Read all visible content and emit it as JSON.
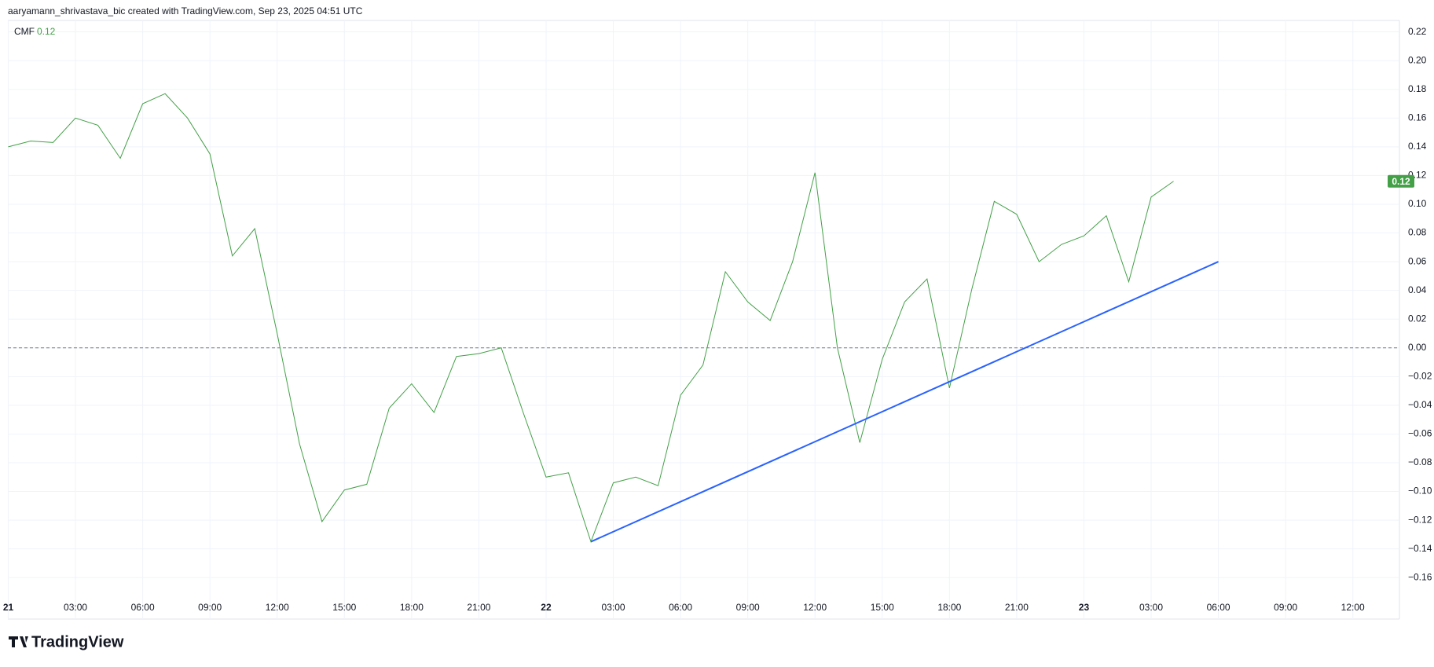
{
  "header": "aaryamann_shrivastava_bic created with TradingView.com, Sep 23, 2025 04:51 UTC",
  "logo": "TradingView",
  "chart_data": {
    "type": "line",
    "legend_name": "CMF",
    "legend_value": "0.12",
    "price_tag": {
      "value": 0.116,
      "label": "0.12",
      "color": "#43a047"
    },
    "categories": [
      "21",
      null,
      null,
      "03:00",
      null,
      null,
      "06:00",
      null,
      null,
      "09:00",
      null,
      null,
      "12:00",
      null,
      null,
      "15:00",
      null,
      null,
      "18:00",
      null,
      null,
      "21:00",
      null,
      null,
      "22",
      null,
      null,
      "03:00",
      null,
      null,
      "06:00",
      null,
      null,
      "09:00",
      null,
      null,
      "12:00",
      null,
      null,
      "15:00",
      null,
      null,
      "18:00",
      null,
      null,
      "21:00",
      null,
      null,
      "23",
      null,
      null,
      "03:00",
      null,
      null,
      "06:00",
      null,
      null,
      "09:00",
      null,
      null,
      "12:00",
      null,
      null
    ],
    "series": [
      {
        "name": "CMF",
        "color": "#43a047",
        "values": [
          0.14,
          0.144,
          0.143,
          0.16,
          0.155,
          0.132,
          0.17,
          0.177,
          0.16,
          0.135,
          0.064,
          0.083,
          0.01,
          -0.067,
          -0.121,
          -0.099,
          -0.095,
          -0.042,
          -0.025,
          -0.045,
          -0.006,
          -0.004,
          0.0,
          -0.046,
          -0.09,
          -0.087,
          -0.135,
          -0.094,
          -0.09,
          -0.096,
          -0.033,
          -0.012,
          0.053,
          0.032,
          0.019,
          0.06,
          0.122,
          0.0,
          -0.066,
          -0.008,
          0.032,
          0.048,
          -0.028,
          0.041,
          0.102,
          0.093,
          0.06,
          0.072,
          0.078,
          0.092,
          0.046,
          0.105,
          0.116,
          null,
          null,
          null,
          null,
          null,
          null,
          null,
          null,
          null,
          null
        ]
      }
    ],
    "trendline": {
      "x": [
        26,
        54
      ],
      "values": [
        -0.135,
        0.06
      ],
      "color": "#2962ff"
    },
    "baseline": 0,
    "ylim": [
      -0.173,
      0.228
    ],
    "yticks": [
      0.22,
      {
        "value": 0.2,
        "label": "0.20"
      },
      0.18,
      0.16,
      0.14,
      0.12,
      {
        "value": 0.1,
        "label": "0.10"
      },
      0.08,
      0.06,
      0.04,
      0.02,
      {
        "value": 0,
        "label": "0.00"
      },
      {
        "value": -0.02,
        "label": "−0.02"
      },
      {
        "value": -0.04,
        "label": "−0.04"
      },
      {
        "value": -0.06,
        "label": "−0.06"
      },
      {
        "value": -0.08,
        "label": "−0.08"
      },
      {
        "value": -0.1,
        "label": "−0.10"
      },
      {
        "value": -0.12,
        "label": "−0.12"
      },
      {
        "value": -0.14,
        "label": "−0.14"
      },
      {
        "value": -0.16,
        "label": "−0.16"
      }
    ],
    "grid": true
  }
}
